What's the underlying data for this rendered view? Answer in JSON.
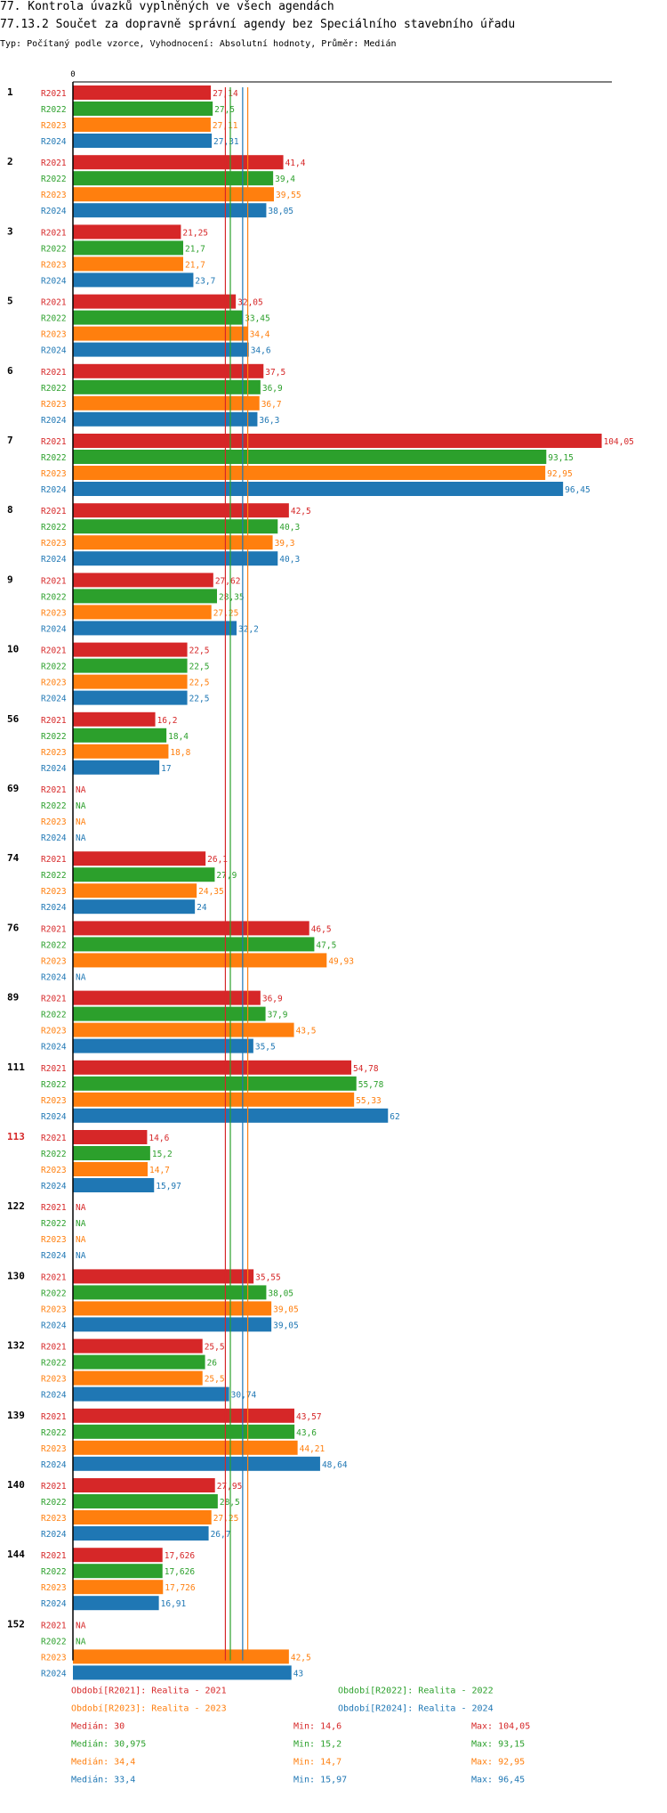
{
  "header": {
    "title1": "77. Kontrola úvazků vyplněných ve všech agendách",
    "title2": "77.13.2 Součet za dopravně správní agendy bez Speciálního stavebního úřadu",
    "subtitle": "Typ: Počítaný podle vzorce, Vyhodnocení: Absolutní hodnoty, Průměr: Medián"
  },
  "colors": {
    "R2021": "#d62728",
    "R2022": "#2ca02c",
    "R2023": "#ff7f0e",
    "R2024": "#1f77b4",
    "highlight": "#d62728"
  },
  "chart_data": {
    "type": "bar",
    "orientation": "horizontal",
    "x_axis_zero_label": "0",
    "xlim": [
      0,
      105
    ],
    "na_label": "NA",
    "series_names": [
      "R2021",
      "R2022",
      "R2023",
      "R2024"
    ],
    "highlighted_category": "113",
    "categories": [
      {
        "label": "1",
        "values": [
          27.14,
          27.5,
          27.11,
          27.31
        ],
        "labels": [
          "27,14",
          "27,5",
          "27,11",
          "27,31"
        ]
      },
      {
        "label": "2",
        "values": [
          41.4,
          39.4,
          39.55,
          38.05
        ],
        "labels": [
          "41,4",
          "39,4",
          "39,55",
          "38,05"
        ]
      },
      {
        "label": "3",
        "values": [
          21.25,
          21.7,
          21.7,
          23.7
        ],
        "labels": [
          "21,25",
          "21,7",
          "21,7",
          "23,7"
        ]
      },
      {
        "label": "5",
        "values": [
          32.05,
          33.45,
          34.4,
          34.6
        ],
        "labels": [
          "32,05",
          "33,45",
          "34,4",
          "34,6"
        ]
      },
      {
        "label": "6",
        "values": [
          37.5,
          36.9,
          36.7,
          36.3
        ],
        "labels": [
          "37,5",
          "36,9",
          "36,7",
          "36,3"
        ]
      },
      {
        "label": "7",
        "values": [
          104.05,
          93.15,
          92.95,
          96.45
        ],
        "labels": [
          "104,05",
          "93,15",
          "92,95",
          "96,45"
        ]
      },
      {
        "label": "8",
        "values": [
          42.5,
          40.3,
          39.3,
          40.3
        ],
        "labels": [
          "42,5",
          "40,3",
          "39,3",
          "40,3"
        ]
      },
      {
        "label": "9",
        "values": [
          27.62,
          28.35,
          27.25,
          32.2
        ],
        "labels": [
          "27,62",
          "28,35",
          "27,25",
          "32,2"
        ]
      },
      {
        "label": "10",
        "values": [
          22.5,
          22.5,
          22.5,
          22.5
        ],
        "labels": [
          "22,5",
          "22,5",
          "22,5",
          "22,5"
        ]
      },
      {
        "label": "56",
        "values": [
          16.2,
          18.4,
          18.8,
          17
        ],
        "labels": [
          "16,2",
          "18,4",
          "18,8",
          "17"
        ]
      },
      {
        "label": "69",
        "values": [
          null,
          null,
          null,
          null
        ],
        "labels": [
          "NA",
          "NA",
          "NA",
          "NA"
        ]
      },
      {
        "label": "74",
        "values": [
          26.1,
          27.9,
          24.35,
          24
        ],
        "labels": [
          "26,1",
          "27,9",
          "24,35",
          "24"
        ]
      },
      {
        "label": "76",
        "values": [
          46.5,
          47.5,
          49.93,
          null
        ],
        "labels": [
          "46,5",
          "47,5",
          "49,93",
          "NA"
        ]
      },
      {
        "label": "89",
        "values": [
          36.9,
          37.9,
          43.5,
          35.5
        ],
        "labels": [
          "36,9",
          "37,9",
          "43,5",
          "35,5"
        ]
      },
      {
        "label": "111",
        "values": [
          54.78,
          55.78,
          55.33,
          62
        ],
        "labels": [
          "54,78",
          "55,78",
          "55,33",
          "62"
        ]
      },
      {
        "label": "113",
        "values": [
          14.6,
          15.2,
          14.7,
          15.97
        ],
        "labels": [
          "14,6",
          "15,2",
          "14,7",
          "15,97"
        ]
      },
      {
        "label": "122",
        "values": [
          null,
          null,
          null,
          null
        ],
        "labels": [
          "NA",
          "NA",
          "NA",
          "NA"
        ]
      },
      {
        "label": "130",
        "values": [
          35.55,
          38.05,
          39.05,
          39.05
        ],
        "labels": [
          "35,55",
          "38,05",
          "39,05",
          "39,05"
        ]
      },
      {
        "label": "132",
        "values": [
          25.5,
          26,
          25.5,
          30.74
        ],
        "labels": [
          "25,5",
          "26",
          "25,5",
          "30,74"
        ]
      },
      {
        "label": "139",
        "values": [
          43.57,
          43.6,
          44.21,
          48.64
        ],
        "labels": [
          "43,57",
          "43,6",
          "44,21",
          "48,64"
        ]
      },
      {
        "label": "140",
        "values": [
          27.95,
          28.5,
          27.25,
          26.7
        ],
        "labels": [
          "27,95",
          "28,5",
          "27,25",
          "26,7"
        ]
      },
      {
        "label": "144",
        "values": [
          17.626,
          17.626,
          17.726,
          16.91
        ],
        "labels": [
          "17,626",
          "17,626",
          "17,726",
          "16,91"
        ]
      },
      {
        "label": "152",
        "values": [
          null,
          null,
          42.5,
          43
        ],
        "labels": [
          "NA",
          "NA",
          "42,5",
          "43"
        ]
      }
    ],
    "medians": [
      30,
      30.975,
      34.4,
      33.4
    ],
    "legend": [
      "Období[R2021]: Realita - 2021",
      "Období[R2022]: Realita - 2022",
      "Období[R2023]: Realita - 2023",
      "Období[R2024]: Realita - 2024"
    ],
    "stats": [
      {
        "median": "Medián: 30",
        "min": "Min: 14,6",
        "max": "Max: 104,05"
      },
      {
        "median": "Medián: 30,975",
        "min": "Min: 15,2",
        "max": "Max: 93,15"
      },
      {
        "median": "Medián: 34,4",
        "min": "Min: 14,7",
        "max": "Max: 92,95"
      },
      {
        "median": "Medián: 33,4",
        "min": "Min: 15,97",
        "max": "Max: 96,45"
      }
    ]
  }
}
